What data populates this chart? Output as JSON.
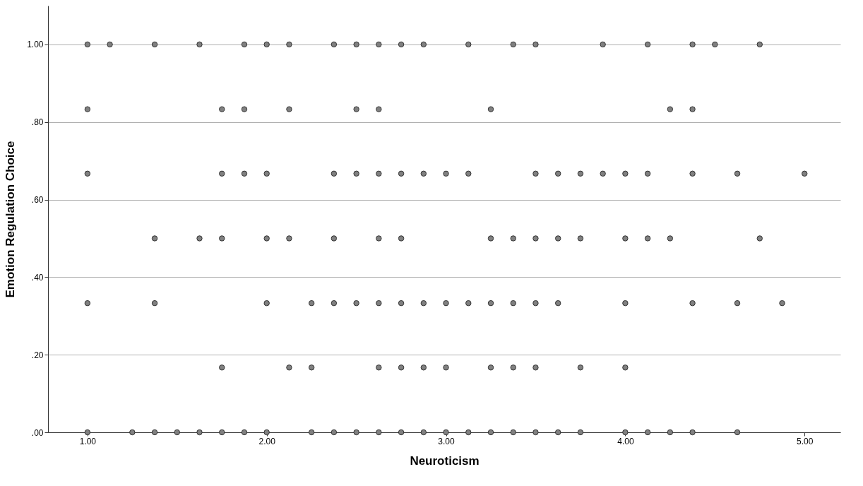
{
  "chart_data": {
    "type": "scatter",
    "xlabel": "Neuroticism",
    "ylabel": "Emotion Regulation Choice",
    "xlim": [
      0.78,
      5.2
    ],
    "ylim": [
      0,
      1.1
    ],
    "xticks": [
      {
        "value": 1,
        "label": "1.00"
      },
      {
        "value": 2,
        "label": "2.00"
      },
      {
        "value": 3,
        "label": "3.00"
      },
      {
        "value": 4,
        "label": "4.00"
      },
      {
        "value": 5,
        "label": "5.00"
      }
    ],
    "yticks": [
      {
        "value": 0,
        "label": ".00"
      },
      {
        "value": 0.2,
        "label": ".20"
      },
      {
        "value": 0.4,
        "label": ".40"
      },
      {
        "value": 0.6,
        "label": ".60"
      },
      {
        "value": 0.8,
        "label": ".80"
      },
      {
        "value": 1,
        "label": "1.00"
      }
    ],
    "grid": "y",
    "marker": "circle",
    "series": [
      {
        "color": "#808080",
        "x": [
          1.0,
          1.125,
          1.375,
          1.625,
          1.875,
          2.0,
          2.125,
          2.375,
          2.5,
          2.625,
          2.75,
          2.875,
          3.125,
          3.375,
          3.5,
          3.875,
          4.125,
          4.375,
          4.5,
          4.75,
          1.0,
          1.75,
          1.875,
          2.125,
          2.5,
          2.625,
          3.25,
          4.25,
          4.375,
          1.0,
          1.75,
          1.875,
          2.0,
          2.375,
          2.5,
          2.625,
          2.75,
          2.875,
          3.0,
          3.125,
          3.5,
          3.625,
          3.75,
          3.875,
          4.0,
          4.125,
          4.375,
          4.625,
          5.0,
          1.375,
          1.625,
          1.75,
          2.0,
          2.125,
          2.375,
          2.625,
          2.75,
          3.25,
          3.375,
          3.5,
          3.625,
          3.75,
          4.0,
          4.125,
          4.25,
          4.75,
          1.0,
          1.375,
          2.0,
          2.25,
          2.375,
          2.5,
          2.625,
          2.75,
          2.875,
          3.0,
          3.125,
          3.25,
          3.375,
          3.5,
          3.625,
          4.0,
          4.375,
          4.625,
          4.875,
          1.75,
          2.125,
          2.25,
          2.625,
          2.75,
          2.875,
          3.0,
          3.25,
          3.375,
          3.5,
          3.75,
          4.0,
          1.0,
          1.25,
          1.375,
          1.5,
          1.625,
          1.75,
          1.875,
          2.0,
          2.25,
          2.375,
          2.5,
          2.625,
          2.75,
          2.875,
          3.0,
          3.125,
          3.25,
          3.375,
          3.5,
          3.625,
          3.75,
          4.0,
          4.125,
          4.25,
          4.375,
          4.625
        ],
        "values": [
          1,
          1,
          1,
          1,
          1,
          1,
          1,
          1,
          1,
          1,
          1,
          1,
          1,
          1,
          1,
          1,
          1,
          1,
          1,
          1,
          0.833,
          0.833,
          0.833,
          0.833,
          0.833,
          0.833,
          0.833,
          0.833,
          0.833,
          0.667,
          0.667,
          0.667,
          0.667,
          0.667,
          0.667,
          0.667,
          0.667,
          0.667,
          0.667,
          0.667,
          0.667,
          0.667,
          0.667,
          0.667,
          0.667,
          0.667,
          0.667,
          0.667,
          0.667,
          0.5,
          0.5,
          0.5,
          0.5,
          0.5,
          0.5,
          0.5,
          0.5,
          0.5,
          0.5,
          0.5,
          0.5,
          0.5,
          0.5,
          0.5,
          0.5,
          0.5,
          0.333,
          0.333,
          0.333,
          0.333,
          0.333,
          0.333,
          0.333,
          0.333,
          0.333,
          0.333,
          0.333,
          0.333,
          0.333,
          0.333,
          0.333,
          0.333,
          0.333,
          0.333,
          0.333,
          0.167,
          0.167,
          0.167,
          0.167,
          0.167,
          0.167,
          0.167,
          0.167,
          0.167,
          0.167,
          0.167,
          0.167,
          0,
          0,
          0,
          0,
          0,
          0,
          0,
          0,
          0,
          0,
          0,
          0,
          0,
          0,
          0,
          0,
          0,
          0,
          0,
          0,
          0,
          0,
          0,
          0,
          0,
          0
        ]
      }
    ]
  }
}
